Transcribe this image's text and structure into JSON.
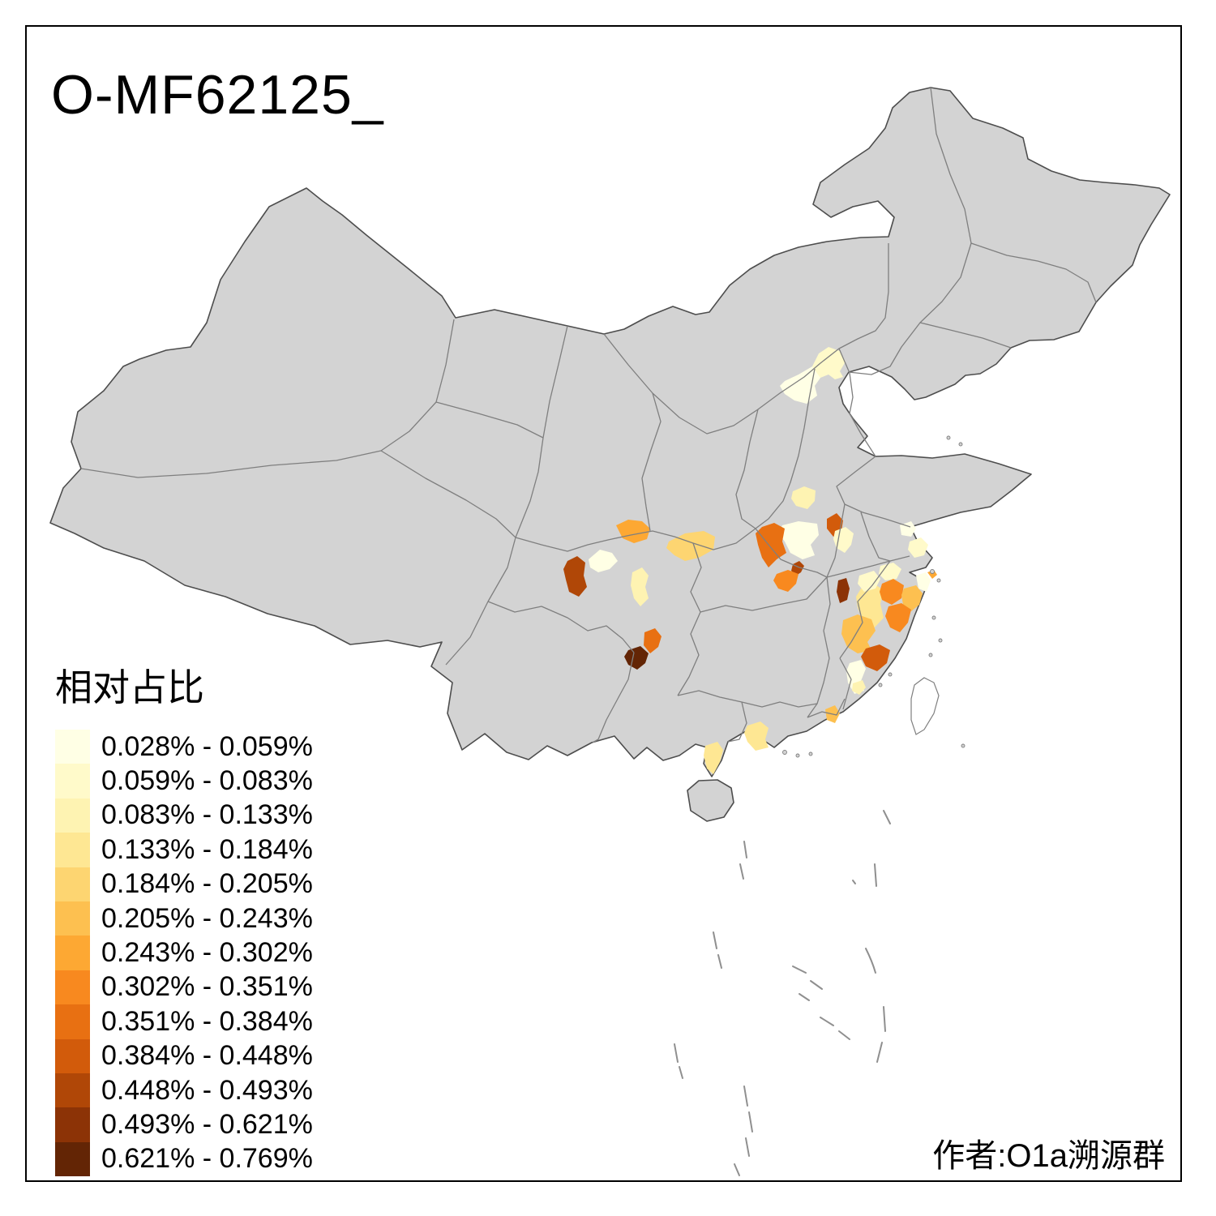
{
  "title": "O-MF62125_",
  "attribution": "作者:O1a溯源群",
  "legend": {
    "title": "相对占比",
    "classes": [
      {
        "label": "0.028% - 0.059%",
        "color": "#FFFFE5"
      },
      {
        "label": "0.059% - 0.083%",
        "color": "#FFFACA"
      },
      {
        "label": "0.083% - 0.133%",
        "color": "#FEF3B2"
      },
      {
        "label": "0.133% - 0.184%",
        "color": "#FEE793"
      },
      {
        "label": "0.184% - 0.205%",
        "color": "#FDD571"
      },
      {
        "label": "0.205% - 0.243%",
        "color": "#FDC050"
      },
      {
        "label": "0.243% - 0.302%",
        "color": "#FDA833"
      },
      {
        "label": "0.302% - 0.351%",
        "color": "#F8891F"
      },
      {
        "label": "0.351% - 0.384%",
        "color": "#E87012"
      },
      {
        "label": "0.384% - 0.448%",
        "color": "#D25B0B"
      },
      {
        "label": "0.448% - 0.493%",
        "color": "#B04707"
      },
      {
        "label": "0.493% - 0.621%",
        "color": "#8C3306"
      },
      {
        "label": "0.621% - 0.769%",
        "color": "#632505"
      }
    ]
  },
  "map": {
    "land_color": "#D3D3D3",
    "border_color": "#7F7F7F",
    "outline_color": "#4D4D4D",
    "sea_color": "#FFFFFF",
    "frame_color": "#000000",
    "regions": [
      {
        "id": "r1",
        "class": 2
      },
      {
        "id": "r2",
        "class": 1
      },
      {
        "id": "r3",
        "class": 3
      },
      {
        "id": "r4",
        "class": 1
      },
      {
        "id": "r5",
        "class": 9
      },
      {
        "id": "r6",
        "class": 10
      },
      {
        "id": "r7",
        "class": 2
      },
      {
        "id": "r8",
        "class": 12
      },
      {
        "id": "r9",
        "class": 5
      },
      {
        "id": "r10",
        "class": 7
      },
      {
        "id": "r11",
        "class": 11
      },
      {
        "id": "r12",
        "class": 1
      },
      {
        "id": "r13",
        "class": 3
      },
      {
        "id": "r14",
        "class": 9
      },
      {
        "id": "r15",
        "class": 13
      },
      {
        "id": "r16",
        "class": 1
      },
      {
        "id": "r17",
        "class": 2
      },
      {
        "id": "r18",
        "class": 2
      },
      {
        "id": "r19",
        "class": 4
      },
      {
        "id": "r20",
        "class": 8
      },
      {
        "id": "r21",
        "class": 6
      },
      {
        "id": "r22",
        "class": 8
      },
      {
        "id": "r23",
        "class": 1
      },
      {
        "id": "r24",
        "class": 6
      },
      {
        "id": "r25",
        "class": 10
      },
      {
        "id": "r26",
        "class": 1
      },
      {
        "id": "r27",
        "class": 3
      },
      {
        "id": "r28",
        "class": 6
      },
      {
        "id": "r29",
        "class": 4
      },
      {
        "id": "r30",
        "class": 4
      },
      {
        "id": "r31",
        "class": 11
      },
      {
        "id": "r32",
        "class": 8
      },
      {
        "id": "r33",
        "class": 7
      },
      {
        "id": "r34",
        "class": 2
      }
    ]
  }
}
